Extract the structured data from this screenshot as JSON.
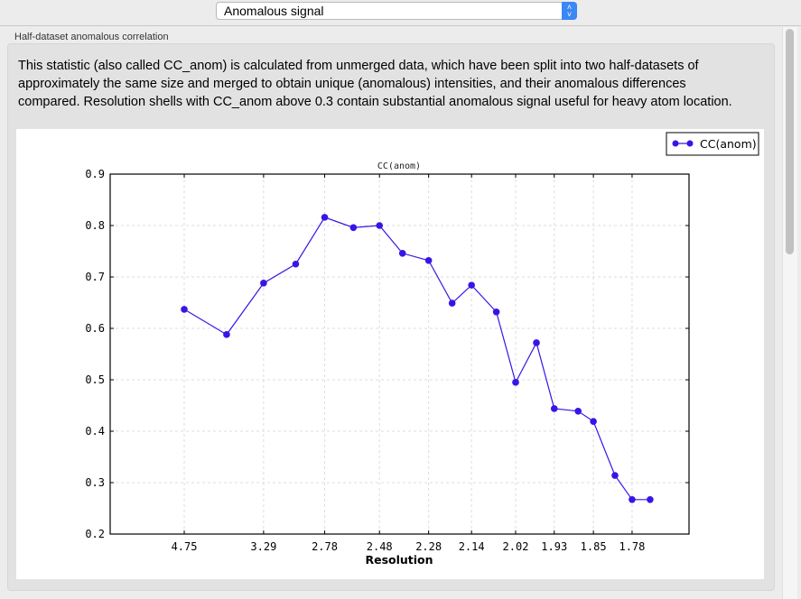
{
  "header": {
    "select_value": "Anomalous signal"
  },
  "group": {
    "title": "Half-dataset anomalous correlation",
    "description": "This statistic (also called CC_anom) is calculated from unmerged data, which have been split into two half-datasets of approximately the same size and merged to obtain unique (anomalous) intensities, and their anomalous differences compared.  Resolution shells with CC_anom above 0.3 contain substantial anomalous signal useful for heavy atom location."
  },
  "chart_data": {
    "type": "line",
    "title": "CC(anom)",
    "xlabel": "Resolution",
    "ylabel": "",
    "x_scale": "1/d^2",
    "ylim": [
      0.2,
      0.9
    ],
    "yticks": [
      "0.2",
      "0.3",
      "0.4",
      "0.5",
      "0.6",
      "0.7",
      "0.8",
      "0.9"
    ],
    "xticks": [
      "4.75",
      "3.29",
      "2.78",
      "2.48",
      "2.28",
      "2.14",
      "2.02",
      "1.93",
      "1.85",
      "1.78"
    ],
    "grid": true,
    "legend_position": "top-right",
    "series": [
      {
        "name": "CC(anom)",
        "color": "#3a14e6",
        "x": [
          4.75,
          3.78,
          3.29,
          2.99,
          2.78,
          2.61,
          2.48,
          2.38,
          2.28,
          2.2,
          2.14,
          2.07,
          2.02,
          1.97,
          1.93,
          1.88,
          1.85,
          1.81,
          1.78,
          1.75
        ],
        "y": [
          0.637,
          0.588,
          0.688,
          0.725,
          0.816,
          0.796,
          0.8,
          0.746,
          0.732,
          0.649,
          0.684,
          0.632,
          0.495,
          0.572,
          0.444,
          0.439,
          0.419,
          0.314,
          0.267,
          0.267
        ]
      }
    ]
  }
}
